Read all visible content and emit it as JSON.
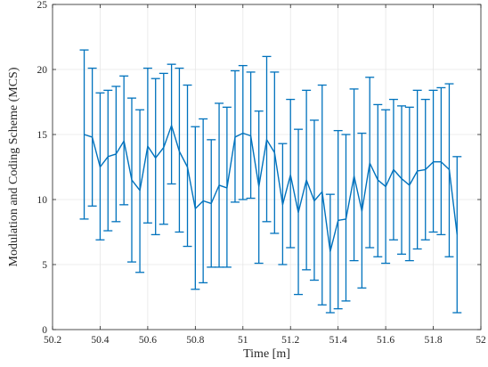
{
  "chart_data": {
    "type": "line",
    "title": "",
    "xlabel": "Time [m]",
    "ylabel": "Modulation and Coding Scheme (MCS)",
    "xlim": [
      50.2,
      52
    ],
    "ylim": [
      0,
      25
    ],
    "xticks": [
      50.2,
      50.4,
      50.6,
      50.8,
      51,
      51.2,
      51.4,
      51.6,
      51.8,
      52
    ],
    "xtick_labels": [
      "50.2",
      "50.4",
      "50.6",
      "50.8",
      "51",
      "51.2",
      "51.4",
      "51.6",
      "51.8",
      "52"
    ],
    "yticks": [
      0,
      5,
      10,
      15,
      20,
      25
    ],
    "ytick_labels": [
      "0",
      "5",
      "10",
      "15",
      "20",
      "25"
    ],
    "grid": true,
    "legend": "none",
    "colors": {
      "series": "#0072BD",
      "grid": "#e6e6e6",
      "axis": "#262626"
    },
    "series": [
      {
        "error_bars": true,
        "x": [
          50.333,
          50.367,
          50.4,
          50.433,
          50.467,
          50.5,
          50.533,
          50.567,
          50.6,
          50.633,
          50.667,
          50.7,
          50.733,
          50.767,
          50.8,
          50.833,
          50.867,
          50.9,
          50.933,
          50.967,
          51.0,
          51.033,
          51.067,
          51.1,
          51.133,
          51.167,
          51.2,
          51.233,
          51.267,
          51.3,
          51.333,
          51.367,
          51.4,
          51.433,
          51.467,
          51.5,
          51.533,
          51.567,
          51.6,
          51.633,
          51.667,
          51.7,
          51.733,
          51.767,
          51.8,
          51.833,
          51.867,
          51.9
        ],
        "y": [
          15.0,
          14.8,
          12.5,
          13.3,
          13.5,
          14.5,
          11.5,
          10.7,
          14.1,
          13.2,
          14.0,
          15.7,
          13.7,
          12.5,
          9.3,
          9.9,
          9.7,
          11.1,
          10.9,
          14.8,
          15.1,
          14.9,
          11.0,
          14.6,
          13.6,
          9.6,
          11.9,
          9.0,
          11.5,
          9.9,
          10.6,
          6.0,
          8.4,
          8.5,
          11.8,
          9.1,
          12.8,
          11.5,
          11.0,
          12.3,
          11.6,
          11.1,
          12.2,
          12.3,
          12.9,
          12.9,
          12.3,
          7.3
        ],
        "upper": [
          21.5,
          20.1,
          18.2,
          18.4,
          18.7,
          19.5,
          17.8,
          16.9,
          20.1,
          19.3,
          19.7,
          20.4,
          20.1,
          18.8,
          15.6,
          16.2,
          14.6,
          17.4,
          17.1,
          19.9,
          20.3,
          19.8,
          16.8,
          21.0,
          19.8,
          14.3,
          17.7,
          15.4,
          18.4,
          16.1,
          18.8,
          10.4,
          15.3,
          15.0,
          18.5,
          15.1,
          19.4,
          17.3,
          16.9,
          17.7,
          17.2,
          17.1,
          18.4,
          17.7,
          18.4,
          18.6,
          18.9,
          13.3
        ],
        "lower": [
          8.5,
          9.5,
          6.9,
          7.6,
          8.3,
          9.6,
          5.2,
          4.4,
          8.2,
          7.3,
          8.1,
          11.2,
          7.5,
          6.4,
          3.1,
          3.6,
          4.8,
          4.8,
          4.8,
          9.8,
          10.0,
          10.1,
          5.1,
          8.3,
          7.4,
          5.0,
          6.3,
          2.7,
          4.6,
          3.8,
          1.9,
          1.3,
          1.6,
          2.2,
          5.3,
          3.2,
          6.3,
          5.6,
          5.1,
          6.9,
          5.8,
          5.3,
          6.2,
          6.9,
          7.5,
          7.3,
          5.6,
          1.3
        ]
      }
    ]
  }
}
